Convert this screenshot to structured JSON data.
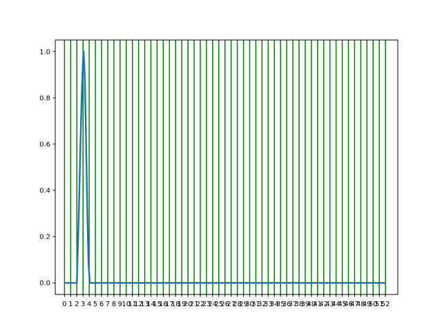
{
  "chart_data": {
    "type": "line",
    "title": "",
    "xlabel": "",
    "ylabel": "",
    "xlim": [
      -1.5,
      54.0
    ],
    "ylim": [
      -0.05,
      1.05
    ],
    "x_ticks": [
      0,
      1,
      2,
      3,
      4,
      5,
      6,
      7,
      8,
      9,
      10,
      11,
      12,
      13,
      14,
      15,
      16,
      17,
      18,
      19,
      20,
      21,
      22,
      23,
      24,
      25,
      26,
      27,
      28,
      29,
      30,
      31,
      32,
      33,
      34,
      35,
      36,
      37,
      38,
      39,
      40,
      41,
      42,
      43,
      44,
      45,
      46,
      47,
      48,
      49,
      50,
      51,
      52
    ],
    "x_tick_labels": [
      "0",
      "1",
      "2",
      "3",
      "4",
      "5",
      "6",
      "7",
      "8",
      "9",
      "10",
      "11",
      "12",
      "13",
      "14",
      "15",
      "16",
      "17",
      "18",
      "19",
      "20",
      "21",
      "22",
      "23",
      "24",
      "25",
      "26",
      "27",
      "28",
      "29",
      "30",
      "31",
      "32",
      "33",
      "34",
      "35",
      "36",
      "37",
      "38",
      "39",
      "40",
      "41",
      "42",
      "43",
      "44",
      "45",
      "46",
      "47",
      "48",
      "49",
      "50",
      "51",
      "52"
    ],
    "y_ticks": [
      0.0,
      0.2,
      0.4,
      0.6,
      0.8,
      1.0
    ],
    "y_tick_labels": [
      "0.0",
      "0.2",
      "0.4",
      "0.6",
      "0.8",
      "1.0"
    ],
    "vlines": [
      0,
      1,
      2,
      3,
      4,
      5,
      6,
      7,
      8,
      9,
      10,
      11,
      12,
      13,
      14,
      15,
      16,
      17,
      18,
      19,
      20,
      21,
      22,
      23,
      24,
      25,
      26,
      27,
      28,
      29,
      30,
      31,
      32,
      33,
      34,
      35,
      36,
      37,
      38,
      39,
      40,
      41,
      42,
      43,
      44,
      45,
      46,
      47,
      48,
      49,
      50,
      51,
      52
    ],
    "vline_color": "#007f00",
    "series": [
      {
        "color": "#1f77b4",
        "x": [
          0,
          2.0,
          2.3,
          2.6,
          2.8,
          3.0,
          3.1,
          3.3,
          3.5,
          3.7,
          3.9,
          4.1,
          52
        ],
        "y": [
          0,
          0,
          0.28,
          0.62,
          0.82,
          0.97,
          1.0,
          0.88,
          0.6,
          0.3,
          0.08,
          0,
          0
        ]
      }
    ],
    "grid": false,
    "legend": "none"
  }
}
